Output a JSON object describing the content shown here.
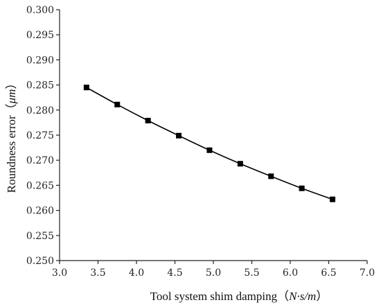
{
  "chart_data": {
    "type": "line",
    "title": "",
    "xlabel": "Tool system shim damping",
    "xlabel_unit_open": "（",
    "xlabel_unit": "N·s/m",
    "xlabel_unit_close": "）",
    "ylabel": "Roundness error",
    "ylabel_unit_open": "（",
    "ylabel_unit": "μm",
    "ylabel_unit_close": "）",
    "xlim": [
      3.0,
      7.0
    ],
    "ylim": [
      0.25,
      0.3
    ],
    "xticks": [
      "3.0",
      "3.5",
      "4.0",
      "4.5",
      "5.0",
      "5.5",
      "6.0",
      "6.5",
      "7.0"
    ],
    "yticks": [
      "0.250",
      "0.255",
      "0.260",
      "0.265",
      "0.270",
      "0.275",
      "0.280",
      "0.285",
      "0.290",
      "0.295",
      "0.300"
    ],
    "grid": false,
    "legend": "none",
    "marker": "square",
    "series": [
      {
        "x": [
          3.35,
          3.75,
          4.15,
          4.55,
          4.95,
          5.35,
          5.75,
          6.15,
          6.55
        ],
        "y": [
          0.2845,
          0.2811,
          0.2779,
          0.2749,
          0.272,
          0.2693,
          0.2668,
          0.2644,
          0.2622
        ]
      }
    ]
  }
}
